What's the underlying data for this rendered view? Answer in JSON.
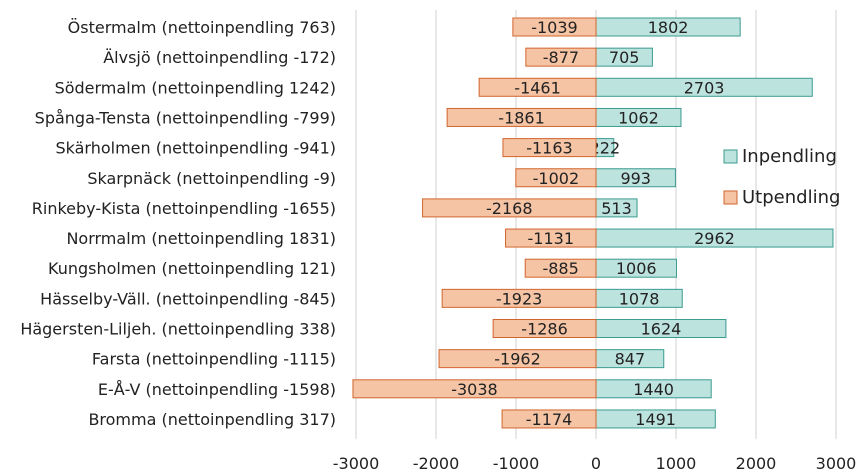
{
  "chart_data": {
    "type": "bar",
    "orientation": "horizontal",
    "stacked": "diverging",
    "categories": [
      "Östermalm (nettoinpendling 763)",
      "Älvsjö (nettoinpendling -172)",
      "Södermalm (nettoinpendling 1242)",
      "Spånga-Tensta (nettoinpendling -799)",
      "Skärholmen (nettoinpendling -941)",
      "Skarpnäck (nettoinpendling -9)",
      "Rinkeby-Kista (nettoinpendling -1655)",
      "Norrmalm (nettoinpendling 1831)",
      "Kungsholmen (nettoinpendling 121)",
      "Hässelby-Väll. (nettoinpendling -845)",
      "Hägersten-Liljeh. (nettoinpendling 338)",
      "Farsta (nettoinpendling -1115)",
      "E-Å-V (nettoinpendling -1598)",
      "Bromma (nettoinpendling 317)"
    ],
    "series": [
      {
        "name": "Inpendling",
        "color": "#bde3df",
        "stroke": "#3a9b8f",
        "values": [
          1802,
          705,
          2703,
          1062,
          222,
          993,
          513,
          2962,
          1006,
          1078,
          1624,
          847,
          1440,
          1491
        ]
      },
      {
        "name": "Utpendling",
        "color": "#f5c4a4",
        "stroke": "#d2652e",
        "values": [
          -1039,
          -877,
          -1461,
          -1861,
          -1163,
          -1002,
          -2168,
          -1131,
          -885,
          -1923,
          -1286,
          -1962,
          -3038,
          -1174
        ]
      }
    ],
    "xlim": [
      -3000,
      3000
    ],
    "xticks": [
      -3000,
      -2000,
      -1000,
      0,
      1000,
      2000,
      3000
    ],
    "grid": true,
    "legend_position": "right"
  }
}
